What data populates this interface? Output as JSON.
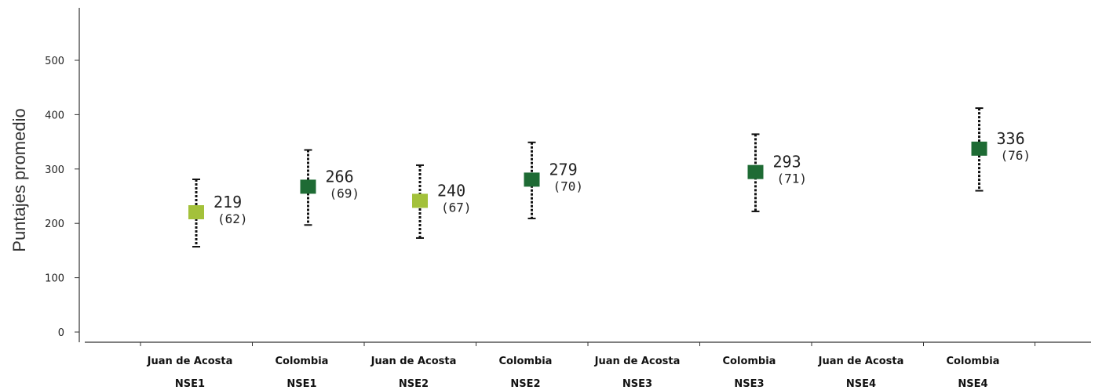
{
  "chart_data": {
    "type": "scatter",
    "ylabel": "Puntajes promedio",
    "ylim": [
      0,
      550
    ],
    "yticks": [
      0,
      100,
      200,
      300,
      400,
      500
    ],
    "grid": false,
    "categories": [
      {
        "line1": "Juan de Acosta",
        "line2": "NSE1"
      },
      {
        "line1": "Colombia",
        "line2": "NSE1"
      },
      {
        "line1": "Juan de Acosta",
        "line2": "NSE2"
      },
      {
        "line1": "Colombia",
        "line2": "NSE2"
      },
      {
        "line1": "Juan de Acosta",
        "line2": "NSE3"
      },
      {
        "line1": "Colombia",
        "line2": "NSE3"
      },
      {
        "line1": "Juan de Acosta",
        "line2": "NSE4"
      },
      {
        "line1": "Colombia",
        "line2": "NSE4"
      }
    ],
    "points": [
      {
        "category_index": 0,
        "mean": 219,
        "sd": 62,
        "label": "219",
        "sd_label": "(62)",
        "color": "#a3c13a"
      },
      {
        "category_index": 1,
        "mean": 266,
        "sd": 69,
        "label": "266",
        "sd_label": "(69)",
        "color": "#1e6b34"
      },
      {
        "category_index": 2,
        "mean": 240,
        "sd": 67,
        "label": "240",
        "sd_label": "(67)",
        "color": "#a3c13a"
      },
      {
        "category_index": 3,
        "mean": 279,
        "sd": 70,
        "label": "279",
        "sd_label": "(70)",
        "color": "#1e6b34"
      },
      {
        "category_index": 5,
        "mean": 293,
        "sd": 71,
        "label": "293",
        "sd_label": "(71)",
        "color": "#1e6b34"
      },
      {
        "category_index": 7,
        "mean": 336,
        "sd": 76,
        "label": "336",
        "sd_label": "(76)",
        "color": "#1e6b34"
      }
    ]
  }
}
